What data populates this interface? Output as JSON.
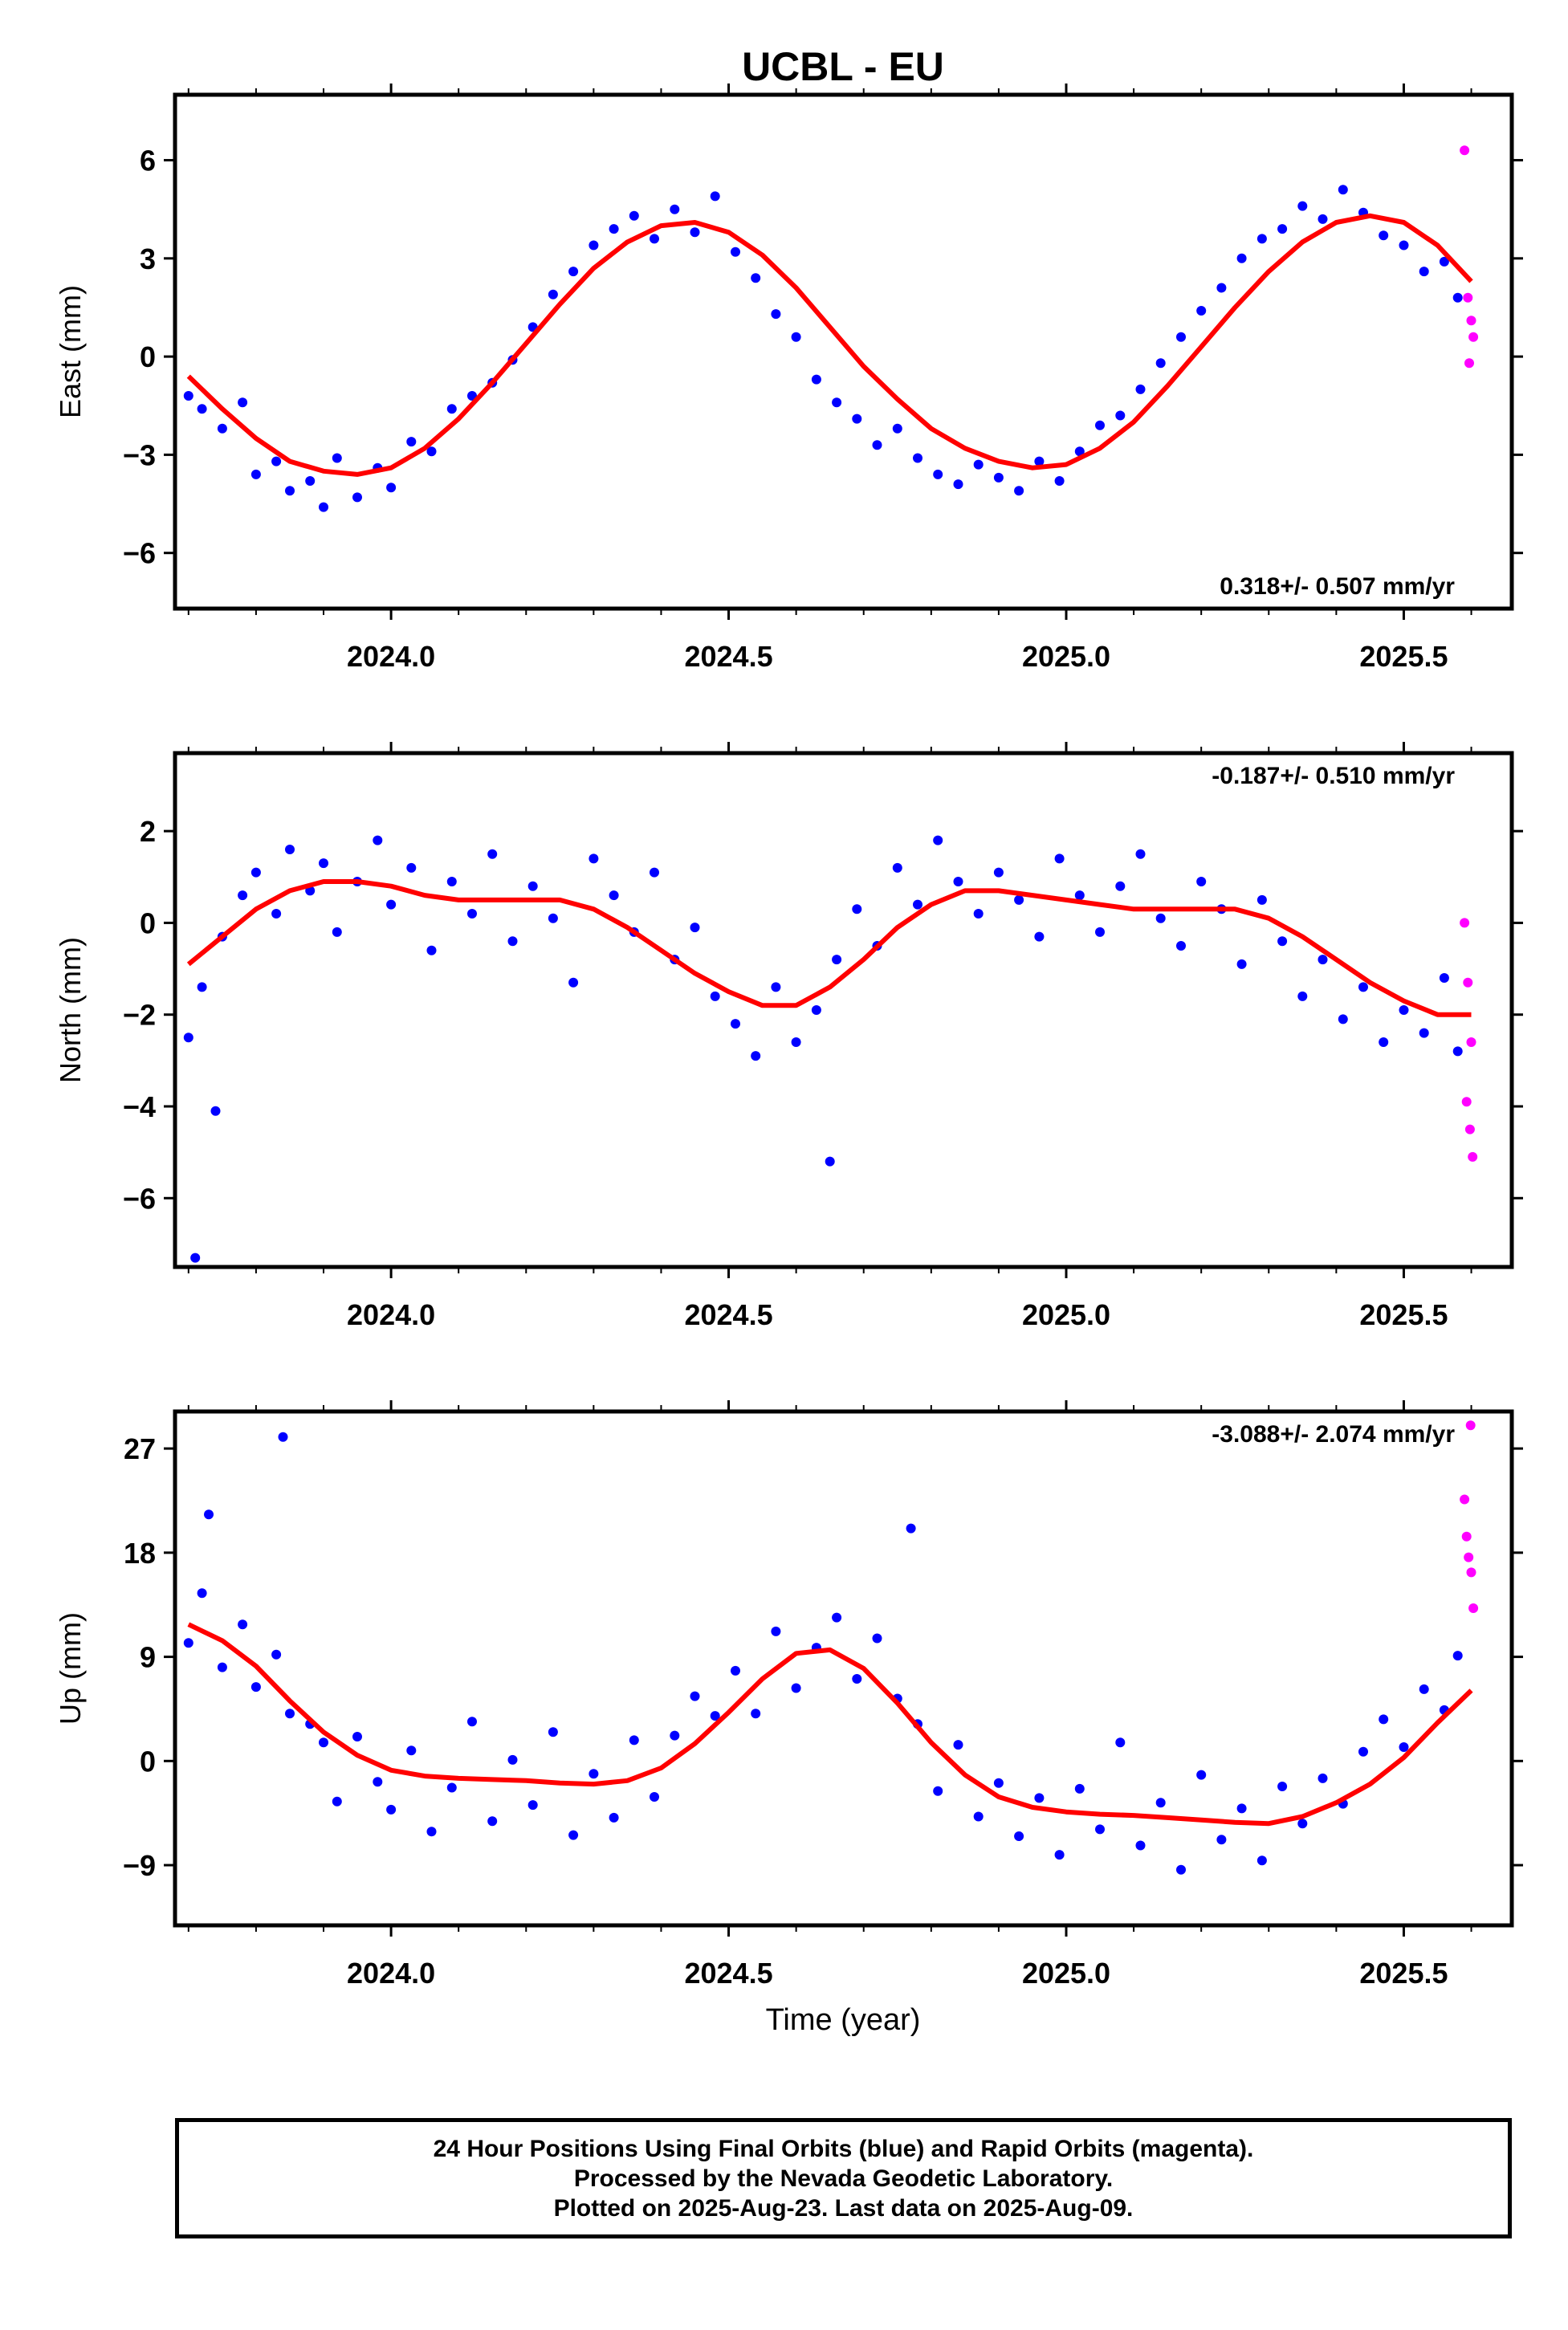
{
  "title": "UCBL - EU",
  "xlabel": "Time (year)",
  "colors": {
    "final": "#0000ff",
    "rapid": "#ff00ff",
    "fit": "#ff0000",
    "frame": "#000000"
  },
  "chart_data": [
    {
      "type": "scatter",
      "ylabel": "East (mm)",
      "rate_label": "0.318+/- 0.507 mm/yr",
      "rate_position": "bottom-right",
      "xlim": [
        2023.68,
        2025.66
      ],
      "ylim": [
        -7.7,
        8.0
      ],
      "xticks": [
        2024.0,
        2024.5,
        2025.0,
        2025.5
      ],
      "xtick_labels": [
        "2024.0",
        "2024.5",
        "2025.0",
        "2025.5"
      ],
      "yticks": [
        -6,
        -3,
        0,
        3,
        6
      ],
      "ytick_labels": [
        "−6",
        "−3",
        "0",
        "3",
        "6"
      ],
      "series": [
        {
          "name": "Final Orbits",
          "color": "#0000ff",
          "x": [
            2023.7,
            2023.72,
            2023.75,
            2023.78,
            2023.8,
            2023.83,
            2023.85,
            2023.88,
            2023.9,
            2023.92,
            2023.95,
            2023.98,
            2024.0,
            2024.03,
            2024.06,
            2024.09,
            2024.12,
            2024.15,
            2024.18,
            2024.21,
            2024.24,
            2024.27,
            2024.3,
            2024.33,
            2024.36,
            2024.39,
            2024.42,
            2024.45,
            2024.48,
            2024.51,
            2024.54,
            2024.57,
            2024.6,
            2024.63,
            2024.66,
            2024.69,
            2024.72,
            2024.75,
            2024.78,
            2024.81,
            2024.84,
            2024.87,
            2024.9,
            2024.93,
            2024.96,
            2024.99,
            2025.02,
            2025.05,
            2025.08,
            2025.11,
            2025.14,
            2025.17,
            2025.2,
            2025.23,
            2025.26,
            2025.29,
            2025.32,
            2025.35,
            2025.38,
            2025.41,
            2025.44,
            2025.47,
            2025.5,
            2025.53,
            2025.56,
            2025.58
          ],
          "y": [
            -1.2,
            -1.6,
            -2.2,
            -1.4,
            -3.6,
            -3.2,
            -4.1,
            -3.8,
            -4.6,
            -3.1,
            -4.3,
            -3.4,
            -4.0,
            -2.6,
            -2.9,
            -1.6,
            -1.2,
            -0.8,
            -0.1,
            0.9,
            1.9,
            2.6,
            3.4,
            3.9,
            4.3,
            3.6,
            4.5,
            3.8,
            4.9,
            3.2,
            2.4,
            1.3,
            0.6,
            -0.7,
            -1.4,
            -1.9,
            -2.7,
            -2.2,
            -3.1,
            -3.6,
            -3.9,
            -3.3,
            -3.7,
            -4.1,
            -3.2,
            -3.8,
            -2.9,
            -2.1,
            -1.8,
            -1.0,
            -0.2,
            0.6,
            1.4,
            2.1,
            3.0,
            3.6,
            3.9,
            4.6,
            4.2,
            5.1,
            4.4,
            3.7,
            3.4,
            2.6,
            2.9,
            1.8
          ]
        },
        {
          "name": "Rapid Orbits",
          "color": "#ff00ff",
          "x": [
            2025.59,
            2025.595,
            2025.6,
            2025.603,
            2025.597
          ],
          "y": [
            6.3,
            1.8,
            1.1,
            0.6,
            -0.2
          ]
        },
        {
          "name": "Fit",
          "color": "#ff0000",
          "x": [
            2023.7,
            2023.75,
            2023.8,
            2023.85,
            2023.9,
            2023.95,
            2024.0,
            2024.05,
            2024.1,
            2024.15,
            2024.2,
            2024.25,
            2024.3,
            2024.35,
            2024.4,
            2024.45,
            2024.5,
            2024.55,
            2024.6,
            2024.65,
            2024.7,
            2024.75,
            2024.8,
            2024.85,
            2024.9,
            2024.95,
            2025.0,
            2025.05,
            2025.1,
            2025.15,
            2025.2,
            2025.25,
            2025.3,
            2025.35,
            2025.4,
            2025.45,
            2025.5,
            2025.55,
            2025.6
          ],
          "y": [
            -0.6,
            -1.6,
            -2.5,
            -3.2,
            -3.5,
            -3.6,
            -3.4,
            -2.8,
            -1.9,
            -0.8,
            0.4,
            1.6,
            2.7,
            3.5,
            4.0,
            4.1,
            3.8,
            3.1,
            2.1,
            0.9,
            -0.3,
            -1.3,
            -2.2,
            -2.8,
            -3.2,
            -3.4,
            -3.3,
            -2.8,
            -2.0,
            -0.9,
            0.3,
            1.5,
            2.6,
            3.5,
            4.1,
            4.3,
            4.1,
            3.4,
            2.3
          ]
        }
      ]
    },
    {
      "type": "scatter",
      "ylabel": "North (mm)",
      "rate_label": "-0.187+/- 0.510 mm/yr",
      "rate_position": "top-right",
      "xlim": [
        2023.68,
        2025.66
      ],
      "ylim": [
        -7.5,
        3.7
      ],
      "xticks": [
        2024.0,
        2024.5,
        2025.0,
        2025.5
      ],
      "xtick_labels": [
        "2024.0",
        "2024.5",
        "2025.0",
        "2025.5"
      ],
      "yticks": [
        -6,
        -4,
        -2,
        0,
        2
      ],
      "ytick_labels": [
        "−6",
        "−4",
        "−2",
        "0",
        "2"
      ],
      "series": [
        {
          "name": "Final Orbits",
          "color": "#0000ff",
          "x": [
            2023.7,
            2023.72,
            2023.75,
            2023.78,
            2023.8,
            2023.83,
            2023.85,
            2023.88,
            2023.9,
            2023.92,
            2023.95,
            2023.98,
            2024.0,
            2024.03,
            2024.06,
            2024.09,
            2024.12,
            2024.15,
            2024.18,
            2024.21,
            2024.24,
            2024.27,
            2024.3,
            2024.33,
            2024.36,
            2024.39,
            2024.42,
            2024.45,
            2024.48,
            2024.51,
            2024.54,
            2024.57,
            2024.6,
            2024.63,
            2024.66,
            2024.69,
            2024.72,
            2024.75,
            2024.78,
            2024.81,
            2024.84,
            2024.87,
            2024.9,
            2024.93,
            2024.96,
            2024.99,
            2025.02,
            2025.05,
            2025.08,
            2025.11,
            2025.14,
            2025.17,
            2025.2,
            2025.23,
            2025.26,
            2025.29,
            2025.32,
            2025.35,
            2025.38,
            2025.41,
            2025.44,
            2025.47,
            2025.5,
            2025.53,
            2025.56,
            2025.58,
            2023.71,
            2023.74,
            2024.65
          ],
          "y": [
            -2.5,
            -1.4,
            -0.3,
            0.6,
            1.1,
            0.2,
            1.6,
            0.7,
            1.3,
            -0.2,
            0.9,
            1.8,
            0.4,
            1.2,
            -0.6,
            0.9,
            0.2,
            1.5,
            -0.4,
            0.8,
            0.1,
            -1.3,
            1.4,
            0.6,
            -0.2,
            1.1,
            -0.8,
            -0.1,
            -1.6,
            -2.2,
            -2.9,
            -1.4,
            -2.6,
            -1.9,
            -0.8,
            0.3,
            -0.5,
            1.2,
            0.4,
            1.8,
            0.9,
            0.2,
            1.1,
            0.5,
            -0.3,
            1.4,
            0.6,
            -0.2,
            0.8,
            1.5,
            0.1,
            -0.5,
            0.9,
            0.3,
            -0.9,
            0.5,
            -0.4,
            -1.6,
            -0.8,
            -2.1,
            -1.4,
            -2.6,
            -1.9,
            -2.4,
            -1.2,
            -2.8,
            -7.3,
            -4.1,
            -5.2
          ]
        },
        {
          "name": "Rapid Orbits",
          "color": "#ff00ff",
          "x": [
            2025.59,
            2025.595,
            2025.6,
            2025.593,
            2025.598,
            2025.602
          ],
          "y": [
            0.0,
            -1.3,
            -2.6,
            -3.9,
            -4.5,
            -5.1
          ]
        },
        {
          "name": "Fit",
          "color": "#ff0000",
          "x": [
            2023.7,
            2023.75,
            2023.8,
            2023.85,
            2023.9,
            2023.95,
            2024.0,
            2024.05,
            2024.1,
            2024.15,
            2024.2,
            2024.25,
            2024.3,
            2024.35,
            2024.4,
            2024.45,
            2024.5,
            2024.55,
            2024.6,
            2024.65,
            2024.7,
            2024.75,
            2024.8,
            2024.85,
            2024.9,
            2024.95,
            2025.0,
            2025.05,
            2025.1,
            2025.15,
            2025.2,
            2025.25,
            2025.3,
            2025.35,
            2025.4,
            2025.45,
            2025.5,
            2025.55,
            2025.6
          ],
          "y": [
            -0.9,
            -0.3,
            0.3,
            0.7,
            0.9,
            0.9,
            0.8,
            0.6,
            0.5,
            0.5,
            0.5,
            0.5,
            0.3,
            -0.1,
            -0.6,
            -1.1,
            -1.5,
            -1.8,
            -1.8,
            -1.4,
            -0.8,
            -0.1,
            0.4,
            0.7,
            0.7,
            0.6,
            0.5,
            0.4,
            0.3,
            0.3,
            0.3,
            0.3,
            0.1,
            -0.3,
            -0.8,
            -1.3,
            -1.7,
            -2.0,
            -2.0
          ]
        }
      ]
    },
    {
      "type": "scatter",
      "ylabel": "Up (mm)",
      "rate_label": "-3.088+/- 2.074 mm/yr",
      "rate_position": "top-right",
      "xlim": [
        2023.68,
        2025.66
      ],
      "ylim": [
        -14.2,
        30.2
      ],
      "xticks": [
        2024.0,
        2024.5,
        2025.0,
        2025.5
      ],
      "xtick_labels": [
        "2024.0",
        "2024.5",
        "2025.0",
        "2025.5"
      ],
      "yticks": [
        -9,
        0,
        9,
        18,
        27
      ],
      "ytick_labels": [
        "−9",
        "0",
        "9",
        "18",
        "27"
      ],
      "series": [
        {
          "name": "Final Orbits",
          "color": "#0000ff",
          "x": [
            2023.7,
            2023.72,
            2023.75,
            2023.78,
            2023.8,
            2023.83,
            2023.85,
            2023.88,
            2023.9,
            2023.92,
            2023.95,
            2023.98,
            2024.0,
            2024.03,
            2024.06,
            2024.09,
            2024.12,
            2024.15,
            2024.18,
            2024.21,
            2024.24,
            2024.27,
            2024.3,
            2024.33,
            2024.36,
            2024.39,
            2024.42,
            2024.45,
            2024.48,
            2024.51,
            2024.54,
            2024.57,
            2024.6,
            2024.63,
            2024.66,
            2024.69,
            2024.72,
            2024.75,
            2024.78,
            2024.81,
            2024.84,
            2024.87,
            2024.9,
            2024.93,
            2024.96,
            2024.99,
            2025.02,
            2025.05,
            2025.08,
            2025.11,
            2025.14,
            2025.17,
            2025.2,
            2025.23,
            2025.26,
            2025.29,
            2025.32,
            2025.35,
            2025.38,
            2025.41,
            2025.44,
            2025.47,
            2025.5,
            2025.53,
            2025.56,
            2025.58,
            2023.73,
            2023.84,
            2024.77
          ],
          "y": [
            10.2,
            14.5,
            8.1,
            11.8,
            6.4,
            9.2,
            4.1,
            3.2,
            1.6,
            -3.5,
            2.1,
            -1.8,
            -4.2,
            0.9,
            -6.1,
            -2.3,
            3.4,
            -5.2,
            0.1,
            -3.8,
            2.5,
            -6.4,
            -1.1,
            -4.9,
            1.8,
            -3.1,
            2.2,
            5.6,
            3.9,
            7.8,
            4.1,
            11.2,
            6.3,
            9.8,
            12.4,
            7.1,
            10.6,
            5.4,
            3.2,
            -2.6,
            1.4,
            -4.8,
            -1.9,
            -6.5,
            -3.2,
            -8.1,
            -2.4,
            -5.9,
            1.6,
            -7.3,
            -3.6,
            -9.4,
            -1.2,
            -6.8,
            -4.1,
            -8.6,
            -2.2,
            -5.4,
            -1.5,
            -3.7,
            0.8,
            3.6,
            1.2,
            6.2,
            4.4,
            9.1,
            21.3,
            28.0,
            20.1
          ]
        },
        {
          "name": "Rapid Orbits",
          "color": "#ff00ff",
          "x": [
            2025.599,
            2025.59,
            2025.593,
            2025.596,
            2025.6,
            2025.603
          ],
          "y": [
            29.0,
            22.6,
            19.4,
            17.6,
            16.3,
            13.2
          ]
        },
        {
          "name": "Fit",
          "color": "#ff0000",
          "x": [
            2023.7,
            2023.75,
            2023.8,
            2023.85,
            2023.9,
            2023.95,
            2024.0,
            2024.05,
            2024.1,
            2024.15,
            2024.2,
            2024.25,
            2024.3,
            2024.35,
            2024.4,
            2024.45,
            2024.5,
            2024.55,
            2024.6,
            2024.65,
            2024.7,
            2024.75,
            2024.8,
            2024.85,
            2024.9,
            2024.95,
            2025.0,
            2025.05,
            2025.1,
            2025.15,
            2025.2,
            2025.25,
            2025.3,
            2025.35,
            2025.4,
            2025.45,
            2025.5,
            2025.55,
            2025.6
          ],
          "y": [
            11.8,
            10.4,
            8.2,
            5.2,
            2.5,
            0.5,
            -0.8,
            -1.3,
            -1.5,
            -1.6,
            -1.7,
            -1.9,
            -2.0,
            -1.7,
            -0.6,
            1.5,
            4.2,
            7.1,
            9.3,
            9.6,
            8.0,
            5.0,
            1.6,
            -1.2,
            -3.1,
            -4.0,
            -4.4,
            -4.6,
            -4.7,
            -4.9,
            -5.1,
            -5.3,
            -5.4,
            -4.8,
            -3.6,
            -2.0,
            0.3,
            3.3,
            6.1
          ]
        }
      ]
    }
  ],
  "footer": {
    "line1": "24 Hour Positions Using Final Orbits (blue) and Rapid Orbits (magenta).",
    "line2": "Processed by the Nevada Geodetic Laboratory.",
    "line3": "Plotted on 2025-Aug-23. Last data on 2025-Aug-09."
  }
}
